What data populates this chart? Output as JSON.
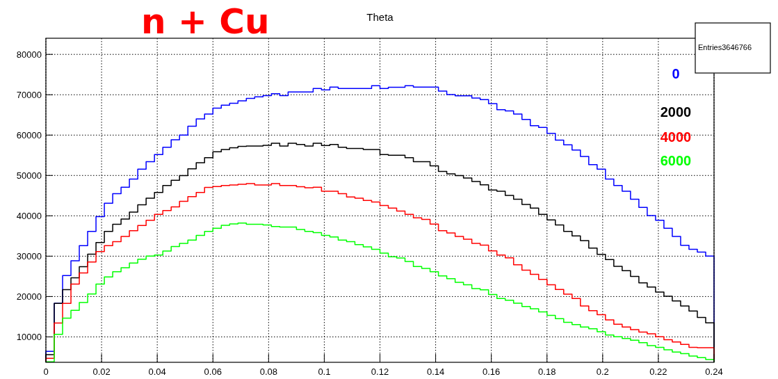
{
  "chart_data": {
    "type": "histogram",
    "title": "Theta",
    "annotations": [
      "n + Cu",
      "Entries3646766"
    ],
    "bins": [
      0,
      0.003,
      0.006,
      0.009,
      0.012,
      0.015,
      0.018,
      0.021,
      0.024,
      0.027,
      0.03,
      0.033,
      0.036,
      0.039,
      0.042,
      0.045,
      0.048,
      0.051,
      0.054,
      0.057,
      0.06,
      0.063,
      0.066,
      0.069,
      0.072,
      0.075,
      0.078,
      0.081,
      0.084,
      0.087,
      0.09,
      0.093,
      0.096,
      0.099,
      0.102,
      0.105,
      0.108,
      0.111,
      0.114,
      0.117,
      0.12,
      0.123,
      0.126,
      0.129,
      0.132,
      0.135,
      0.138,
      0.141,
      0.144,
      0.147,
      0.15,
      0.153,
      0.156,
      0.159,
      0.162,
      0.165,
      0.168,
      0.171,
      0.174,
      0.177,
      0.18,
      0.183,
      0.186,
      0.189,
      0.192,
      0.195,
      0.198,
      0.201,
      0.204,
      0.207,
      0.21,
      0.213,
      0.216,
      0.219,
      0.222,
      0.225,
      0.228,
      0.231,
      0.234,
      0.237,
      0.24
    ],
    "series": [
      {
        "name": "0",
        "color": "#0000ff",
        "values": [
          6400,
          18300,
          25200,
          28850,
          32600,
          36150,
          39800,
          43100,
          45500,
          47100,
          49100,
          51550,
          53400,
          55200,
          57000,
          58850,
          60000,
          62200,
          64000,
          65200,
          66700,
          67400,
          67900,
          68500,
          69100,
          69500,
          69800,
          70250,
          69800,
          70700,
          70700,
          70700,
          71550,
          71200,
          71900,
          71550,
          71550,
          71550,
          71550,
          72250,
          71550,
          71850,
          71850,
          72250,
          71900,
          71900,
          71900,
          70900,
          70050,
          69750,
          69750,
          69200,
          68800,
          67800,
          66300,
          66000,
          65200,
          63900,
          62350,
          61900,
          60450,
          58750,
          57600,
          56300,
          54700,
          52700,
          51550,
          49100,
          47500,
          46100,
          44100,
          42100,
          40050,
          38900,
          36900,
          34900,
          32700,
          31700,
          31000,
          30000
        ]
      },
      {
        "name": "2000",
        "color": "#000000",
        "values": [
          5600,
          18300,
          21700,
          24650,
          27400,
          30500,
          33400,
          36150,
          37900,
          39200,
          40900,
          42750,
          44350,
          45800,
          47500,
          48800,
          49950,
          51650,
          53150,
          54400,
          55850,
          56450,
          56850,
          57200,
          57300,
          57300,
          57450,
          58000,
          57300,
          58000,
          57700,
          57300,
          58000,
          57400,
          57700,
          57000,
          56700,
          56700,
          56450,
          56450,
          55200,
          55000,
          55000,
          54400,
          53400,
          53400,
          52400,
          51000,
          50400,
          49950,
          49350,
          48500,
          47700,
          46400,
          46100,
          45050,
          44100,
          42800,
          41900,
          40350,
          39000,
          37750,
          36150,
          35000,
          33850,
          32000,
          30450,
          29150,
          27500,
          26400,
          25000,
          23400,
          22350,
          21100,
          20050,
          18900,
          17650,
          16400,
          14800,
          13500
        ]
      },
      {
        "name": "4000",
        "color": "#ff0000",
        "values": [
          4700,
          13450,
          18300,
          23100,
          25850,
          28550,
          31150,
          32600,
          33600,
          34900,
          36300,
          37600,
          38900,
          40350,
          41300,
          42200,
          43600,
          44750,
          45800,
          47050,
          47250,
          47500,
          47650,
          47800,
          48000,
          47650,
          47650,
          48000,
          47500,
          47500,
          47200,
          46950,
          47100,
          46100,
          46100,
          45500,
          44650,
          44350,
          43800,
          43400,
          42550,
          41900,
          41200,
          40350,
          39500,
          39100,
          37950,
          36300,
          35750,
          34900,
          34200,
          33150,
          32750,
          31300,
          30300,
          29600,
          27850,
          26550,
          25500,
          24250,
          22900,
          21750,
          20600,
          19500,
          17650,
          16500,
          15500,
          14200,
          13150,
          12450,
          11800,
          11200,
          10750,
          10050,
          9300,
          8750,
          8150,
          7400,
          7300,
          7300
        ]
      },
      {
        "name": "6000",
        "color": "#00ff00",
        "values": [
          3850,
          10650,
          14650,
          16600,
          18500,
          20650,
          23100,
          24850,
          26150,
          27150,
          28300,
          29250,
          30000,
          30300,
          31250,
          32400,
          33150,
          34000,
          35150,
          36150,
          36900,
          37650,
          38000,
          38200,
          37900,
          37900,
          37750,
          37350,
          37200,
          37200,
          36600,
          36150,
          35850,
          35150,
          34750,
          34000,
          33600,
          32850,
          32300,
          31700,
          30750,
          29850,
          29550,
          28700,
          27450,
          26950,
          26150,
          25100,
          24400,
          23500,
          22900,
          21950,
          21650,
          20500,
          19500,
          19100,
          18350,
          17550,
          16950,
          16200,
          15350,
          14500,
          13600,
          13050,
          12450,
          12000,
          11300,
          10450,
          10050,
          9600,
          9150,
          8550,
          7850,
          7400,
          6800,
          6250,
          5850,
          5250,
          4850,
          4400
        ]
      }
    ],
    "xlim": [
      0,
      0.24
    ],
    "xticks": [
      0,
      0.02,
      0.04,
      0.06,
      0.08,
      0.1,
      0.12,
      0.14,
      0.16,
      0.18,
      0.2,
      0.22,
      0.24
    ],
    "ylim": [
      3700,
      84000
    ],
    "yticks": [
      10000,
      20000,
      30000,
      40000,
      50000,
      60000,
      70000,
      80000
    ],
    "grid": true,
    "legend": "top right"
  }
}
